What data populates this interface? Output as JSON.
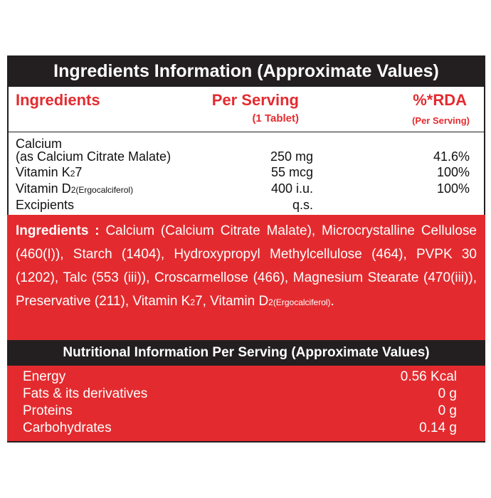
{
  "header": {
    "title": "Ingredients Information (Approximate Values)"
  },
  "table": {
    "columns": [
      {
        "title": "Ingredients"
      },
      {
        "title": "Per Serving",
        "subtitle": "(1 Tablet)"
      },
      {
        "title": "%*RDA",
        "subtitle": "(Per Serving)"
      }
    ],
    "rows": [
      {
        "name": {
          "text": "Calcium"
        },
        "name_line2": "(as Calcium Citrate Malate)",
        "amount": "250 mg",
        "rda": "41.6%"
      },
      {
        "name": {
          "text": "Vitamin K",
          "sub": "2",
          "after": "7"
        },
        "amount": "55 mcg",
        "rda": "100%"
      },
      {
        "name": {
          "text": "Vitamin D",
          "sub": "2(Ergocalciferol)"
        },
        "amount": "400 i.u.",
        "rda": "100%"
      },
      {
        "name": {
          "text": "Excipients"
        },
        "amount": "q.s."
      }
    ]
  },
  "ingredients": {
    "label": "Ingredients :",
    "parts": [
      " Calcium (Calcium Citrate Malate), Microcrystalline Cellulose (460(I)), Starch (1404), Hydroxypropyl Methylcellulose (464), PVPK 30 (1202), Talc (553 (iii)), Croscarmellose (466), Magnesium Stearate (470(iii)), Preservative (211), Vitamin K",
      "2",
      "7, Vitamin D",
      "2(Ergocalciferol)",
      "."
    ]
  },
  "nutrition": {
    "title": "Nutritional Information Per Serving (Approximate Values)",
    "rows": [
      {
        "name": "Energy",
        "value": "0.56 Kcal"
      },
      {
        "name": "Fats & its derivatives",
        "value": "0 g"
      },
      {
        "name": "Proteins",
        "value": "0 g"
      },
      {
        "name": "Carbohydrates",
        "value": "0.14 g"
      }
    ]
  }
}
